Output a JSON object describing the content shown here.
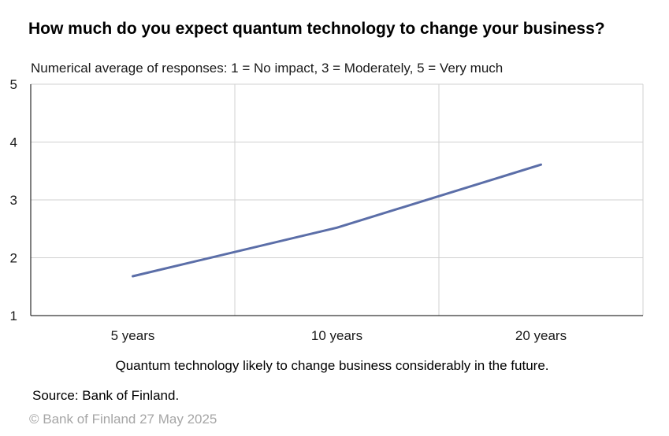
{
  "title": "How much do you expect quantum technology to change your business?",
  "subtitle": "Numerical average of responses: 1 = No impact, 3 = Moderately, 5 = Very much",
  "caption": "Quantum technology likely to change business considerably in the future.",
  "source": "Source: Bank of Finland.",
  "copyright": "© Bank of Finland 27 May 2025",
  "colors": {
    "line": "#5b6ea8",
    "grid": "#d0d0d0",
    "axis": "#000000"
  },
  "chart_data": {
    "type": "line",
    "categories": [
      "5 years",
      "10 years",
      "20 years"
    ],
    "series": [
      {
        "values": [
          1.68,
          2.52,
          3.61
        ]
      }
    ],
    "ylim": [
      1,
      5
    ],
    "yticks": [
      1,
      2,
      3,
      4,
      5
    ],
    "grid": true,
    "legend": "none"
  }
}
